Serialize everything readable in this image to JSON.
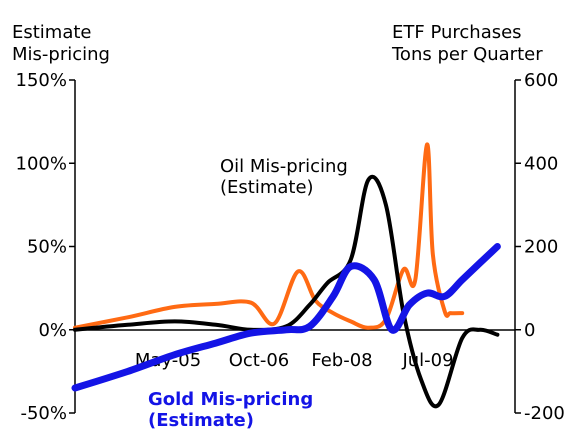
{
  "chart_data": {
    "type": "line",
    "left_axis_title": [
      "Estimate",
      "Mis-pricing"
    ],
    "right_axis_title": [
      "ETF Purchases",
      "Tons per Quarter"
    ],
    "left_axis": {
      "ticks": [
        "150%",
        "100%",
        "50%",
        "0%",
        "-50%"
      ],
      "ylim": [
        -50,
        150
      ],
      "unit": "%"
    },
    "right_axis": {
      "ticks": [
        "600",
        "400",
        "200",
        "0",
        "-200"
      ],
      "ylim": [
        -200,
        600
      ]
    },
    "x_tick_labels": [
      "May-05",
      "Oct-06",
      "Feb-08",
      "Jul-09"
    ],
    "x_range": [
      "2004-01",
      "2010-04"
    ],
    "annotations": {
      "oil": [
        "Oil Mis-pricing",
        "(Estimate)"
      ],
      "gold": [
        "Gold Mis-pricing",
        "(Estimate)"
      ]
    },
    "colors": {
      "oil": "#000000",
      "gold": "#1414e6",
      "etf": "#ff6a13"
    },
    "series": [
      {
        "key": "etf",
        "axis": "right",
        "x": [
          "2004-01",
          "2004-10",
          "2005-06",
          "2006-01",
          "2006-07",
          "2006-11",
          "2007-03",
          "2007-06",
          "2007-09",
          "2007-12",
          "2008-03",
          "2008-06",
          "2008-09",
          "2008-11",
          "2009-01",
          "2009-02",
          "2009-04",
          "2009-05",
          "2009-07"
        ],
        "values": [
          5,
          30,
          55,
          62,
          65,
          15,
          140,
          70,
          40,
          20,
          5,
          25,
          145,
          120,
          445,
          180,
          45,
          40,
          40
        ]
      },
      {
        "key": "oil",
        "axis": "left",
        "x": [
          "2004-01",
          "2004-10",
          "2005-06",
          "2006-01",
          "2006-07",
          "2007-01",
          "2007-05",
          "2007-08",
          "2007-12",
          "2008-03",
          "2008-06",
          "2008-09",
          "2008-12",
          "2009-03",
          "2009-07",
          "2009-10",
          "2010-01"
        ],
        "values": [
          0,
          3,
          5,
          3,
          0,
          2,
          15,
          28,
          42,
          90,
          75,
          10,
          -30,
          -45,
          -5,
          0,
          -3
        ]
      },
      {
        "key": "gold",
        "axis": "left",
        "x": [
          "2004-01",
          "2004-10",
          "2005-06",
          "2006-01",
          "2006-07",
          "2007-01",
          "2007-05",
          "2007-09",
          "2007-12",
          "2008-04",
          "2008-07",
          "2008-10",
          "2009-01",
          "2009-04",
          "2009-07",
          "2009-10",
          "2010-01"
        ],
        "values": [
          -35,
          -25,
          -15,
          -8,
          -2,
          0,
          2,
          20,
          38,
          30,
          0,
          15,
          22,
          20,
          30,
          40,
          50
        ]
      }
    ]
  }
}
